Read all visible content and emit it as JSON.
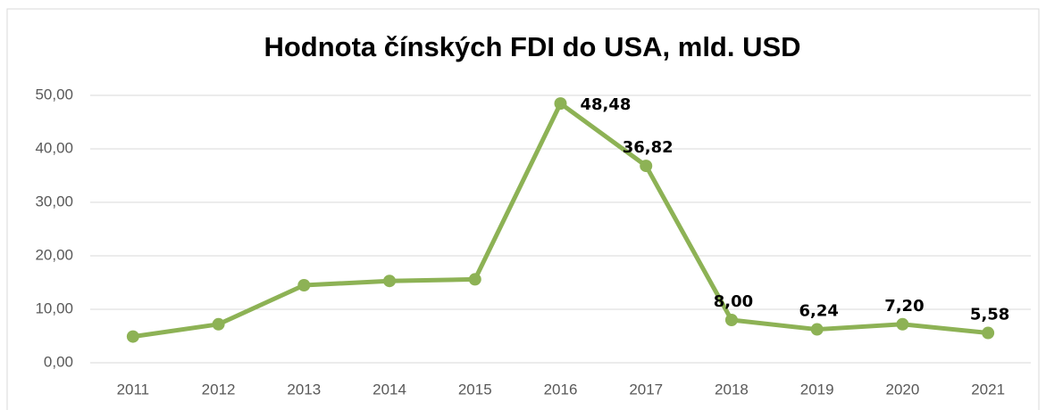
{
  "chart_data": {
    "type": "line",
    "title": "Hodnota čínských FDI do USA, mld. USD",
    "categories": [
      "2011",
      "2012",
      "2013",
      "2014",
      "2015",
      "2016",
      "2017",
      "2018",
      "2019",
      "2020",
      "2021"
    ],
    "series": [
      {
        "name": "Hodnota",
        "color": "#8db255",
        "values": [
          4.9,
          7.2,
          14.5,
          15.3,
          15.6,
          48.48,
          36.82,
          8.0,
          6.24,
          7.2,
          5.58
        ],
        "value_labels": [
          null,
          null,
          null,
          null,
          null,
          "48,48",
          "36,82",
          "8,00",
          "6,24",
          "7,20",
          "5,58"
        ]
      }
    ],
    "ylim": [
      0,
      50
    ],
    "yticks": [
      {
        "value": 0,
        "label": "0,00"
      },
      {
        "value": 10,
        "label": "10,00"
      },
      {
        "value": 20,
        "label": "20,00"
      },
      {
        "value": 30,
        "label": "30,00"
      },
      {
        "value": 40,
        "label": "40,00"
      },
      {
        "value": 50,
        "label": "50,00"
      }
    ],
    "grid": true
  }
}
